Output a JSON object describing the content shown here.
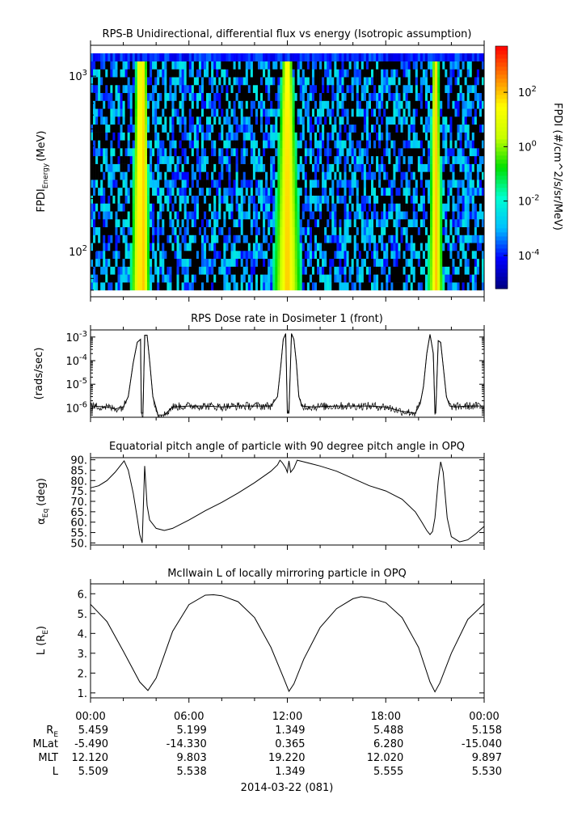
{
  "chart_data": [
    {
      "type": "heatmap",
      "title": "RPS-B  Unidirectional, differential flux vs energy (Isotropic assumption)",
      "ylabel": "FPDI",
      "ylabel_sub": "Energy",
      "ylabel_unit": "(MeV)",
      "y_scale": "log",
      "ylim": [
        55,
        1500
      ],
      "y_ticks": [
        {
          "value": 100,
          "label": "10",
          "exp": "2"
        },
        {
          "value": 1000,
          "label": "10",
          "exp": "3"
        }
      ],
      "x_hours": [
        0,
        24
      ],
      "energy_channels": 30,
      "energy_range": [
        60,
        1350
      ],
      "belt_passes_hours": [
        {
          "center": 3.0,
          "halfwidth": 0.55
        },
        {
          "center": 3.25,
          "halfwidth": 0.35
        },
        {
          "center": 12.0,
          "halfwidth": 0.9
        },
        {
          "center": 21.05,
          "halfwidth": 0.45
        }
      ],
      "colorbar": {
        "label": "FPDI (#/cm^2/s/sr/MeV)",
        "scale": "log",
        "range": [
          6e-06,
          5000
        ],
        "ticks": [
          {
            "value": 0.0001,
            "label": "10",
            "exp": "-4"
          },
          {
            "value": 0.01,
            "label": "10",
            "exp": "-2"
          },
          {
            "value": 1,
            "label": "10",
            "exp": "0"
          },
          {
            "value": 100,
            "label": "10",
            "exp": "2"
          }
        ],
        "colors": [
          "#00007f",
          "#0000ff",
          "#00bfff",
          "#00ffd0",
          "#00e000",
          "#c8ff00",
          "#ffff00",
          "#ff8000",
          "#ff0000"
        ]
      }
    },
    {
      "type": "line",
      "title": "RPS  Dose rate in Dosimeter 1 (front)",
      "ylabel": "(rads/sec)",
      "y_scale": "log",
      "ylim": [
        4e-07,
        0.002
      ],
      "y_ticks": [
        {
          "value": 1e-06,
          "label": "10",
          "exp": "-6"
        },
        {
          "value": 1e-05,
          "label": "10",
          "exp": "-5"
        },
        {
          "value": 0.0001,
          "label": "10",
          "exp": "-4"
        },
        {
          "value": 0.001,
          "label": "10",
          "exp": "-3"
        }
      ],
      "series": [
        {
          "x": [
            0,
            1.0,
            1.5,
            2.0,
            2.3,
            2.6,
            2.85,
            3.05,
            3.1,
            3.2,
            3.3,
            3.45,
            3.6,
            3.8,
            4.0,
            4.1,
            4.5,
            5.0,
            6.0,
            7.0,
            8.0,
            9.0,
            10.0,
            11.0,
            11.4,
            11.6,
            11.75,
            11.9,
            12.0,
            12.1,
            12.25,
            12.4,
            12.55,
            12.7,
            12.9,
            13.5,
            15.0,
            17.0,
            18.0,
            19.0,
            19.8,
            20.1,
            20.3,
            20.5,
            20.7,
            20.9,
            21.0,
            21.05,
            21.2,
            21.35,
            21.5,
            21.7,
            21.9,
            22.2,
            23.0,
            24.0
          ],
          "y": [
            1.2e-06,
            1.1e-06,
            9e-07,
            1.1e-06,
            3e-06,
            8e-05,
            0.0006,
            0.0008,
            6e-07,
            6e-07,
            0.0012,
            0.0012,
            0.0001,
            3e-06,
            1e-06,
            5e-07,
            5e-07,
            1.1e-06,
            1.2e-06,
            1.2e-06,
            1.1e-06,
            1.2e-06,
            1.2e-06,
            1.2e-06,
            3e-06,
            6e-05,
            0.0008,
            0.0014,
            6e-07,
            6e-07,
            0.0014,
            0.0008,
            8e-05,
            3e-06,
            1.2e-06,
            1.1e-06,
            1.2e-06,
            1.2e-06,
            1.1e-06,
            7e-07,
            6e-07,
            1.5e-06,
            8e-06,
            0.0002,
            0.0013,
            0.0002,
            6e-07,
            6e-07,
            0.0007,
            0.0006,
            6e-05,
            3e-06,
            1.2e-06,
            1.1e-06,
            1.2e-06,
            1.2e-06
          ]
        }
      ]
    },
    {
      "type": "line",
      "title": "Equatorial pitch angle of particle with 90 degree pitch angle in OPQ",
      "ylabel": "α",
      "ylabel_sub": "Eq",
      "ylabel_unit": "(deg)",
      "ylim": [
        49,
        91
      ],
      "y_ticks": [
        {
          "value": 50,
          "label": "50."
        },
        {
          "value": 55,
          "label": "55."
        },
        {
          "value": 60,
          "label": "60."
        },
        {
          "value": 65,
          "label": "65."
        },
        {
          "value": 70,
          "label": "70."
        },
        {
          "value": 75,
          "label": "75."
        },
        {
          "value": 80,
          "label": "80."
        },
        {
          "value": 85,
          "label": "85."
        },
        {
          "value": 90,
          "label": "90."
        }
      ],
      "series": [
        {
          "x": [
            0,
            0.5,
            1.0,
            1.5,
            1.9,
            2.05,
            2.3,
            2.6,
            2.85,
            3.0,
            3.15,
            3.3,
            3.45,
            3.6,
            4.0,
            4.5,
            5.0,
            6.0,
            7.0,
            8.0,
            9.0,
            10.0,
            11.0,
            11.4,
            11.55,
            11.7,
            11.9,
            12.0,
            12.1,
            12.2,
            12.4,
            12.6,
            13.0,
            14.0,
            15.0,
            16.0,
            17.0,
            18.0,
            19.0,
            19.8,
            20.2,
            20.5,
            20.7,
            20.85,
            21.0,
            21.2,
            21.35,
            21.5,
            21.75,
            22.0,
            22.5,
            23.0,
            23.5,
            24.0
          ],
          "y": [
            76.5,
            77.5,
            80,
            84,
            88,
            89.5,
            85,
            74,
            62,
            54,
            50,
            87,
            68,
            61,
            57,
            56,
            57,
            61,
            65.5,
            69.5,
            74,
            79,
            84.5,
            87.5,
            89.8,
            88.5,
            86,
            84,
            89.5,
            84,
            86,
            89.8,
            89,
            87,
            84.5,
            81,
            77.5,
            75,
            71,
            65,
            60,
            56,
            54,
            55.5,
            62,
            80,
            89,
            84,
            62,
            53,
            50.5,
            51.5,
            54.5,
            58
          ]
        }
      ]
    },
    {
      "type": "line",
      "title": "McIlwain L of locally mirroring particle in OPQ",
      "ylabel": "L (R",
      "ylabel_sub": "E",
      "ylabel_unit": ")",
      "ylim": [
        0.75,
        6.5
      ],
      "y_ticks": [
        {
          "value": 1,
          "label": "1."
        },
        {
          "value": 2,
          "label": "2."
        },
        {
          "value": 3,
          "label": "3."
        },
        {
          "value": 4,
          "label": "4."
        },
        {
          "value": 5,
          "label": "5."
        },
        {
          "value": 6,
          "label": "6."
        }
      ],
      "series": [
        {
          "x": [
            0,
            1.0,
            2.0,
            3.0,
            3.5,
            4.0,
            5.0,
            6.0,
            7.0,
            7.5,
            8.0,
            9.0,
            10.0,
            11.0,
            11.8,
            12.1,
            12.4,
            13.0,
            14.0,
            15.0,
            16.0,
            16.5,
            17.0,
            18.0,
            19.0,
            20.0,
            20.7,
            21.0,
            21.3,
            22.0,
            23.0,
            24.0
          ],
          "y": [
            5.47,
            4.6,
            3.1,
            1.55,
            1.12,
            1.75,
            4.1,
            5.45,
            5.93,
            5.95,
            5.9,
            5.6,
            4.8,
            3.3,
            1.7,
            1.08,
            1.45,
            2.7,
            4.3,
            5.25,
            5.75,
            5.85,
            5.8,
            5.55,
            4.8,
            3.3,
            1.55,
            1.05,
            1.5,
            3.0,
            4.7,
            5.5
          ]
        }
      ]
    }
  ],
  "x_axis": {
    "tick_labels": [
      "00:00",
      "06:00",
      "12:00",
      "18:00",
      "00:00"
    ],
    "date_label": "2014-03-22 (081)"
  },
  "ephemeris": {
    "rows": [
      {
        "name": "R",
        "sub": "E",
        "values": [
          "5.459",
          "5.199",
          "1.349",
          "5.488",
          "5.158"
        ]
      },
      {
        "name": "MLat",
        "sub": "",
        "values": [
          "-5.490",
          "-14.330",
          "0.365",
          "6.280",
          "-15.040"
        ]
      },
      {
        "name": "MLT",
        "sub": "",
        "values": [
          "12.120",
          "9.803",
          "19.220",
          "12.020",
          "9.897"
        ]
      },
      {
        "name": "L",
        "sub": "",
        "values": [
          "5.509",
          "5.538",
          "1.349",
          "5.555",
          "5.530"
        ]
      }
    ]
  }
}
